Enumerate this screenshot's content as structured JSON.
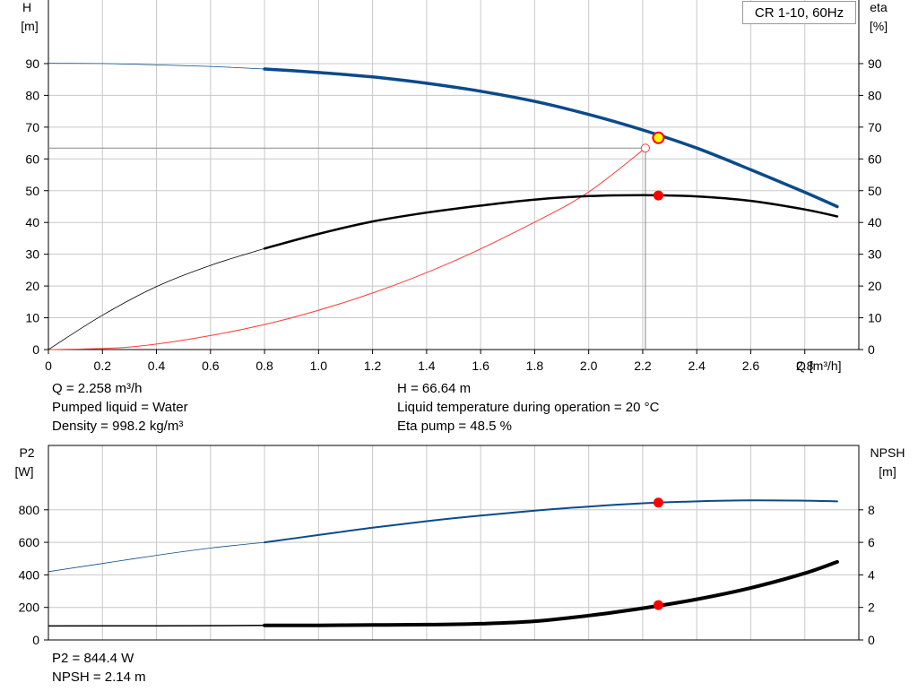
{
  "pump_label": "CR 1-10, 60Hz",
  "info_top_left": {
    "q": "Q = 2.258 m³/h",
    "liquid": "Pumped liquid = Water",
    "density": "Density = 998.2 kg/m³"
  },
  "info_top_right": {
    "h": "H = 66.64 m",
    "temp": "Liquid temperature during operation = 20 °C",
    "eta": "Eta pump = 48.5 %"
  },
  "info_bottom": {
    "p2": "P2 = 844.4 W",
    "npsh": "NPSH = 2.14 m"
  },
  "colors": {
    "head": "#0b4a8a",
    "eta": "#000000",
    "system": "#ff3a3a",
    "p2": "#0b4a8a",
    "npsh": "#000000",
    "grid": "#c8c8c8",
    "marker": "#ff0000",
    "duty_marker_fill": "#ffff00"
  },
  "chart_data": [
    {
      "type": "line",
      "x_unit_label": "Q [m³/h]",
      "y_left_label": [
        "H",
        "[m]"
      ],
      "y_right_label": [
        "eta",
        "[%]"
      ],
      "xlim": [
        0,
        3.0
      ],
      "ylim": [
        0,
        100
      ],
      "x_ticks": [
        "0",
        "0.2",
        "0.4",
        "0.6",
        "0.8",
        "1.0",
        "1.2",
        "1.4",
        "1.6",
        "1.8",
        "2.0",
        "2.2",
        "2.4",
        "2.6",
        "2.8"
      ],
      "y_ticks": [
        "0",
        "10",
        "20",
        "30",
        "40",
        "50",
        "60",
        "70",
        "80",
        "90"
      ],
      "grid": true,
      "series": [
        {
          "key": "head",
          "x": [
            0,
            0.2,
            0.4,
            0.6,
            0.8,
            1.0,
            1.2,
            1.4,
            1.6,
            1.8,
            2.0,
            2.2,
            2.4,
            2.6,
            2.8,
            2.92
          ],
          "values": [
            90.1,
            90.0,
            89.6,
            89.1,
            88.3,
            87.2,
            85.8,
            83.8,
            81.3,
            78.1,
            74.0,
            69.1,
            63.4,
            56.6,
            49.5,
            45.0
          ],
          "thick_from": 0.8
        },
        {
          "key": "eta",
          "x": [
            0,
            0.2,
            0.4,
            0.6,
            0.8,
            1.0,
            1.2,
            1.4,
            1.6,
            1.8,
            2.0,
            2.2,
            2.4,
            2.6,
            2.8,
            2.92
          ],
          "values": [
            0,
            10.8,
            19.8,
            26.5,
            31.8,
            36.4,
            40.3,
            43.1,
            45.3,
            47.2,
            48.3,
            48.6,
            48.2,
            46.8,
            44.1,
            41.9
          ],
          "thick_from": 0.8
        },
        {
          "key": "system",
          "x": [
            0,
            0.3,
            0.6,
            0.9,
            1.2,
            1.5,
            1.8,
            2.0,
            2.21
          ],
          "values": [
            0,
            0.8,
            4.4,
            10.0,
            17.8,
            27.8,
            40.1,
            49.6,
            63.4
          ]
        }
      ],
      "duty_point": {
        "q": 2.258,
        "h": 66.64,
        "eta": 48.5
      },
      "system_end": {
        "q": 2.21,
        "h": 63.4
      }
    },
    {
      "type": "line",
      "y_left_label": [
        "P2",
        "[W]"
      ],
      "y_right_label": [
        "NPSH",
        "[m]"
      ],
      "xlim": [
        0,
        3.0
      ],
      "ylim_left": [
        0,
        1000
      ],
      "ylim_right": [
        0,
        10
      ],
      "y_left_ticks": [
        "0",
        "200",
        "400",
        "600",
        "800"
      ],
      "y_right_ticks": [
        "0",
        "2",
        "4",
        "6",
        "8"
      ],
      "grid": true,
      "series": [
        {
          "key": "p2",
          "x": [
            0,
            0.2,
            0.4,
            0.6,
            0.8,
            1.0,
            1.2,
            1.4,
            1.6,
            1.8,
            2.0,
            2.2,
            2.4,
            2.6,
            2.8,
            2.92
          ],
          "values": [
            420,
            470,
            520,
            565,
            600,
            645,
            690,
            730,
            765,
            795,
            820,
            840,
            852,
            858,
            856,
            852
          ],
          "thick_from": 0.8
        },
        {
          "key": "npsh",
          "x": [
            0,
            0.4,
            0.8,
            1.0,
            1.2,
            1.4,
            1.6,
            1.8,
            2.0,
            2.2,
            2.4,
            2.6,
            2.8,
            2.92
          ],
          "values": [
            0.86,
            0.87,
            0.89,
            0.9,
            0.92,
            0.94,
            1.0,
            1.15,
            1.5,
            1.95,
            2.5,
            3.2,
            4.1,
            4.8
          ],
          "thick_from": 0.8
        }
      ],
      "duty_point": {
        "q": 2.258,
        "p2": 844.4,
        "npsh": 2.14
      }
    }
  ]
}
